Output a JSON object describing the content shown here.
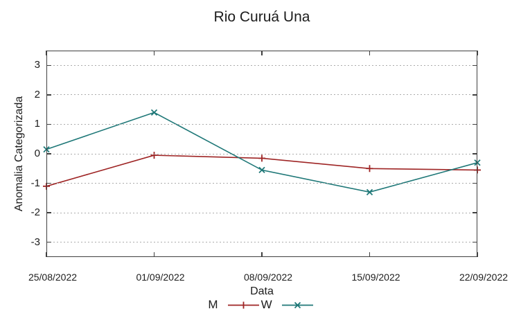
{
  "chart_data": {
    "type": "line",
    "title": "Rio Curuá Una",
    "xlabel": "Data",
    "ylabel": "Anomalia Categorizada",
    "categories": [
      "25/08/2022",
      "01/09/2022",
      "08/09/2022",
      "15/09/2022",
      "22/09/2022"
    ],
    "series": [
      {
        "name": "M",
        "color": "#9e2424",
        "marker": "plus",
        "values": [
          -1.1,
          -0.05,
          -0.15,
          -0.5,
          -0.55
        ]
      },
      {
        "name": "W",
        "color": "#1f7878",
        "marker": "cross",
        "values": [
          0.15,
          1.4,
          -0.55,
          -1.3,
          -0.3
        ]
      }
    ],
    "ylim": [
      -3.5,
      3.5
    ],
    "yticks": [
      3,
      2,
      1,
      0,
      -1,
      -2,
      -3
    ],
    "grid": "horizontal-dotted",
    "grid_color": "#ababab",
    "border_color": "#3f3f3f",
    "legend_position": "bottom-center"
  }
}
